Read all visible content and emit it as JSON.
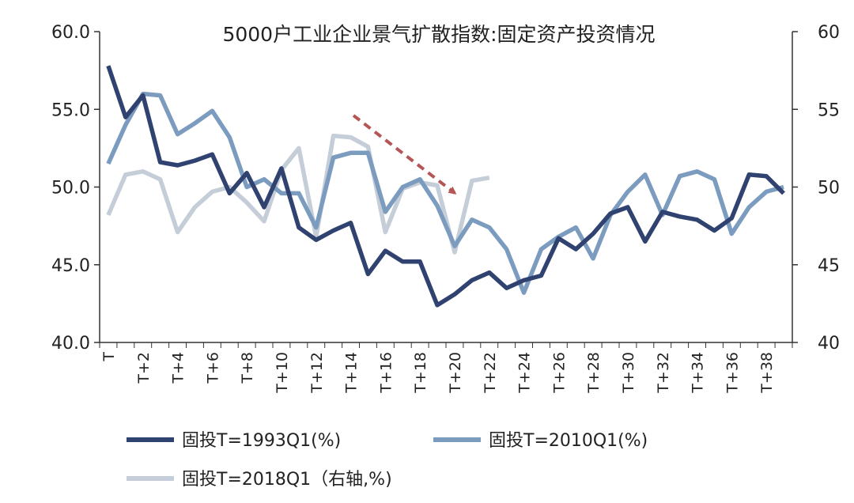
{
  "chart_data": {
    "type": "line",
    "title": "5000户工业企业景气扩散指数:固定资产投资情况",
    "x_ticks": [
      "T",
      "T+2",
      "T+4",
      "T+6",
      "T+8",
      "T+10",
      "T+12",
      "T+14",
      "T+16",
      "T+18",
      "T+20",
      "T+22",
      "T+24",
      "T+26",
      "T+28",
      "T+30",
      "T+32",
      "T+34",
      "T+36",
      "T+38"
    ],
    "x_count": 40,
    "y_left": {
      "min": 40,
      "max": 60,
      "ticks": [
        "40.0",
        "45.0",
        "50.0",
        "55.0",
        "60.0"
      ]
    },
    "y_right": {
      "min": 40,
      "max": 60,
      "ticks": [
        "40",
        "45",
        "50",
        "55",
        "60"
      ]
    },
    "series": [
      {
        "name": "固投T=1993Q1(%)",
        "axis": "left",
        "color": "#2f4270",
        "values": [
          57.8,
          54.5,
          55.9,
          51.6,
          51.4,
          51.7,
          52.1,
          49.6,
          50.9,
          48.7,
          51.2,
          47.4,
          46.6,
          47.2,
          47.7,
          44.4,
          45.9,
          45.2,
          45.2,
          42.4,
          43.1,
          44.0,
          44.5,
          43.5,
          44.0,
          44.3,
          46.7,
          46.0,
          47.0,
          48.3,
          48.7,
          46.5,
          48.4,
          48.1,
          47.9,
          47.2,
          48.0,
          50.8,
          50.7,
          49.6
        ]
      },
      {
        "name": "固投T=2010Q1(%)",
        "axis": "left",
        "color": "#7b9bbf",
        "values": [
          51.5,
          54.0,
          56.0,
          55.9,
          53.4,
          54.1,
          54.9,
          53.2,
          50.0,
          50.5,
          49.6,
          49.6,
          47.4,
          51.9,
          52.2,
          52.2,
          48.4,
          50.0,
          50.5,
          48.8,
          46.2,
          47.9,
          47.4,
          46.0,
          43.2,
          46.0,
          46.8,
          47.4,
          45.4,
          48.2,
          49.7,
          50.8,
          48.2,
          50.7,
          51.0,
          50.5,
          47.0,
          48.7,
          49.7,
          50.0
        ]
      },
      {
        "name": "固投T=2018Q1（右轴,%)",
        "axis": "right",
        "color": "#c4cdd8",
        "values": [
          48.2,
          50.8,
          51.0,
          50.5,
          47.1,
          48.7,
          49.7,
          50.0,
          49.0,
          47.8,
          51.1,
          52.5,
          46.8,
          53.3,
          53.2,
          52.6,
          47.1,
          49.9,
          50.3,
          50.1,
          45.8,
          50.4,
          50.6
        ]
      }
    ],
    "legend_position": "bottom",
    "annotation": "red-dashed-arrow"
  }
}
